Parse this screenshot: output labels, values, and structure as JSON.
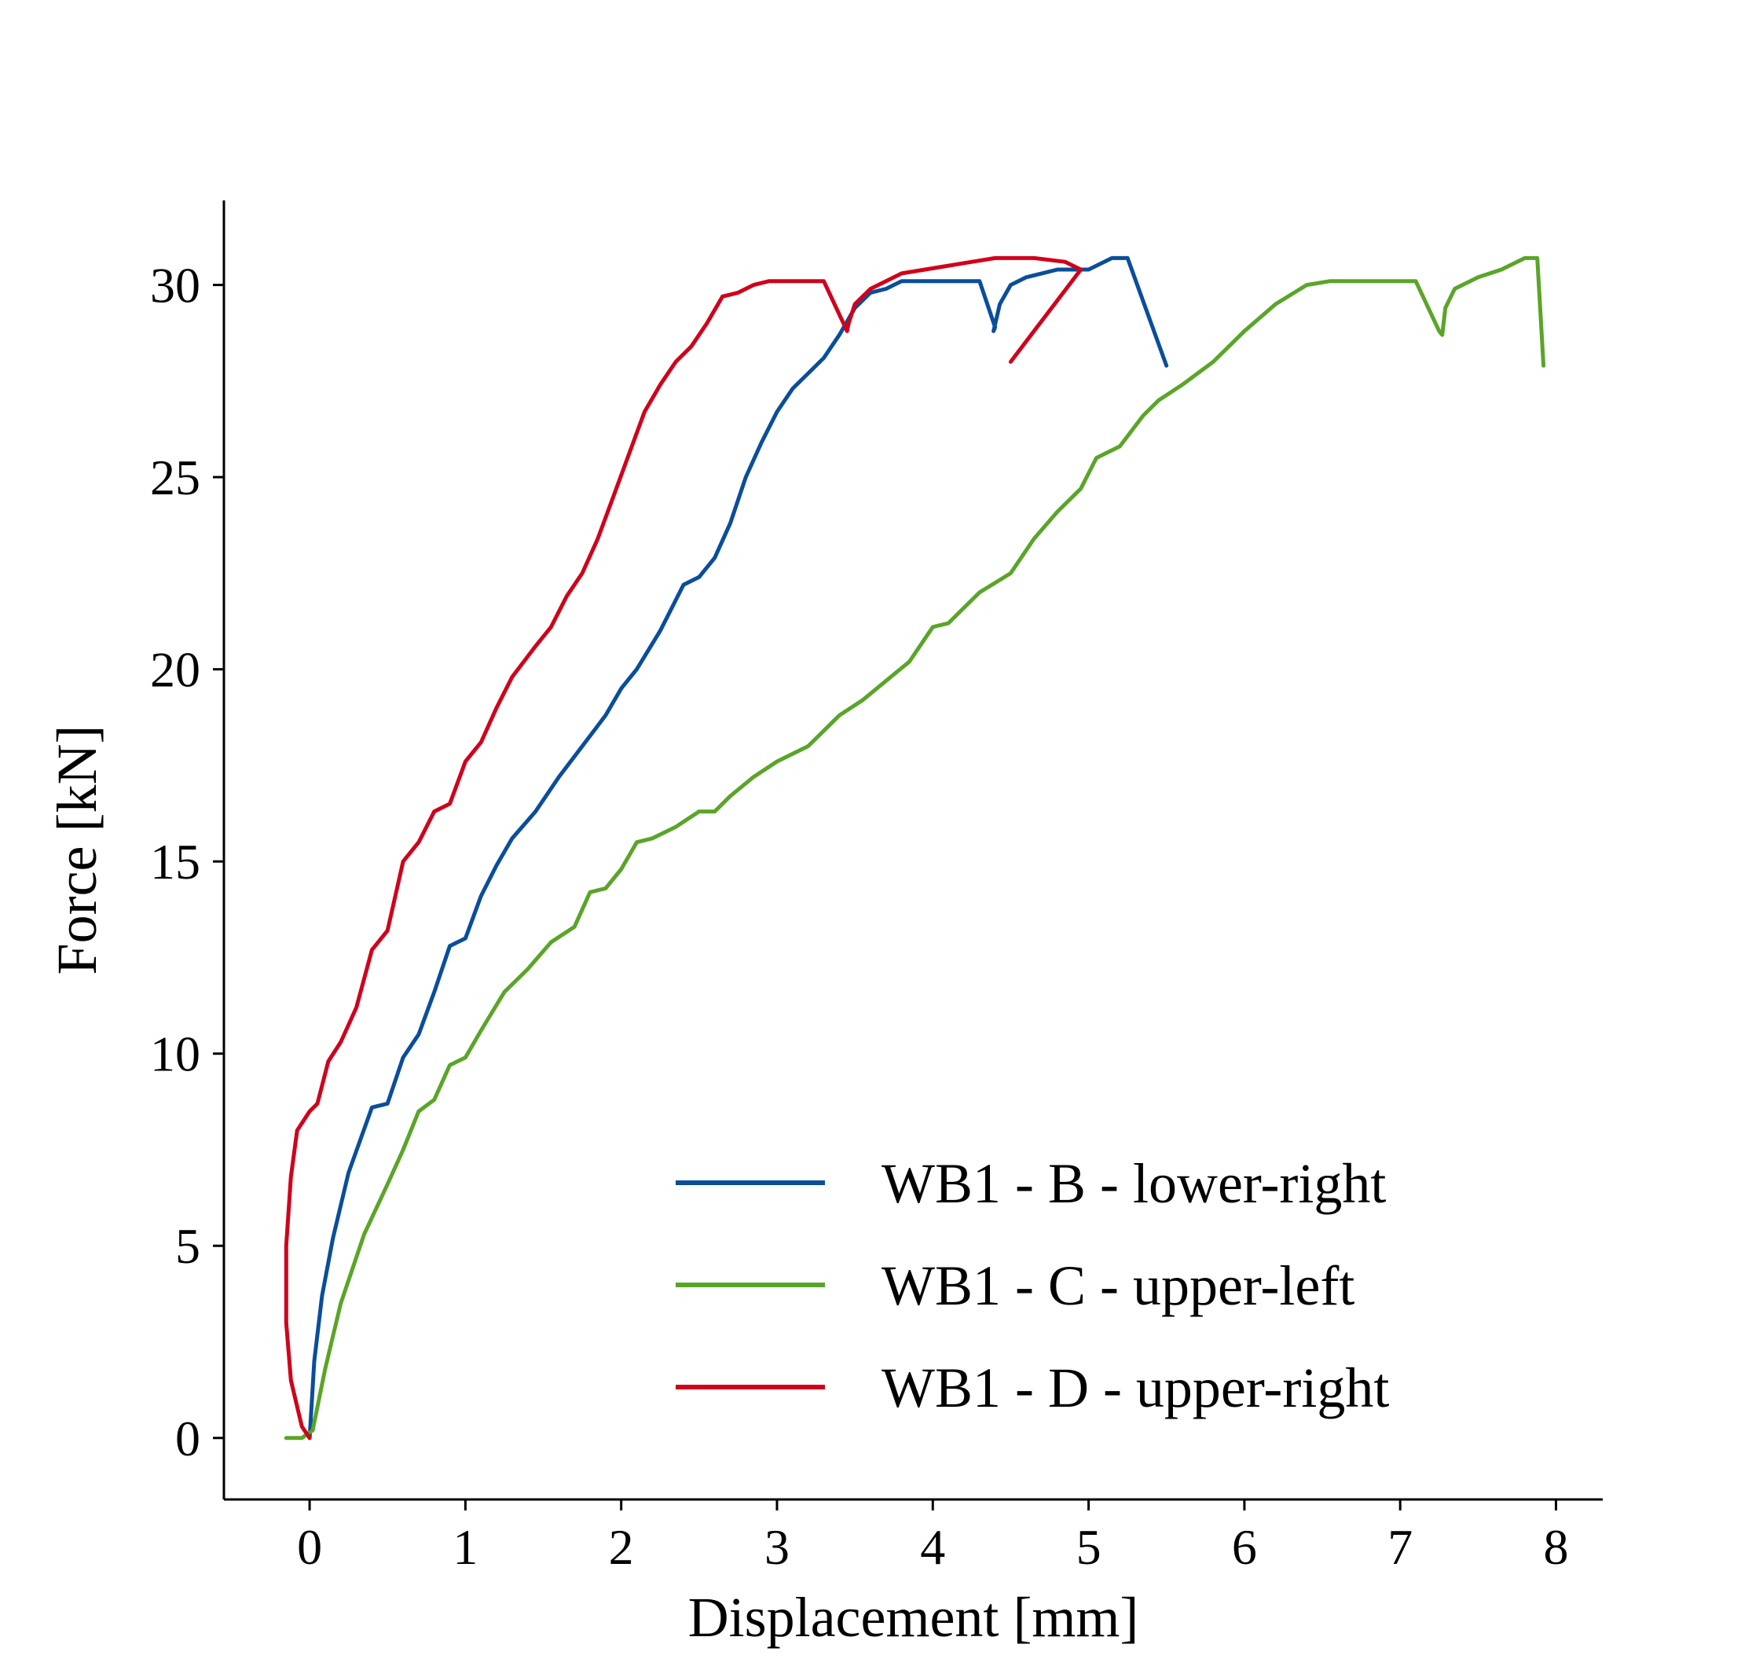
{
  "chart_data": {
    "type": "line",
    "title": "",
    "xlabel": "Displacement [mm]",
    "ylabel": "Force [kN]",
    "xlim": [
      -0.55,
      8.3
    ],
    "ylim": [
      -1.6,
      32.2
    ],
    "xticks": [
      0,
      1,
      2,
      3,
      4,
      5,
      6,
      7,
      8
    ],
    "xtick_labels": [
      "0",
      "1",
      "2",
      "3",
      "4",
      "5",
      "6",
      "7",
      "8"
    ],
    "yticks": [
      0,
      5,
      10,
      15,
      20,
      25,
      30
    ],
    "ytick_labels": [
      "0",
      "5",
      "10",
      "15",
      "20",
      "25",
      "30"
    ],
    "grid": false,
    "legend": "lower-right",
    "colors": {
      "axis": "#000000"
    },
    "series": [
      {
        "name": "WB1 - B - lower-right",
        "color": "#0a4e9b",
        "x": [
          0,
          0.03,
          0.08,
          0.15,
          0.25,
          0.4,
          0.5,
          0.6,
          0.7,
          0.8,
          0.9,
          1.0,
          1.1,
          1.2,
          1.3,
          1.45,
          1.6,
          1.75,
          1.9,
          2.0,
          2.1,
          2.25,
          2.4,
          2.5,
          2.6,
          2.7,
          2.8,
          2.9,
          3.0,
          3.1,
          3.2,
          3.3,
          3.4,
          3.5,
          3.6,
          3.7,
          3.8,
          3.9,
          4.0,
          4.1,
          4.2,
          4.3,
          4.4,
          4.39,
          4.43,
          4.5,
          4.6,
          4.7,
          4.8,
          4.9,
          5.0,
          5.1,
          5.15,
          5.25,
          5.5
        ],
        "y": [
          0,
          2,
          3.7,
          5.2,
          6.9,
          8.6,
          8.7,
          9.9,
          10.5,
          11.6,
          12.8,
          13.0,
          14.1,
          14.9,
          15.6,
          16.3,
          17.2,
          18.0,
          18.8,
          19.5,
          20.0,
          21.0,
          22.2,
          22.4,
          22.9,
          23.8,
          25.0,
          25.9,
          26.7,
          27.3,
          27.7,
          28.1,
          28.7,
          29.4,
          29.8,
          29.9,
          30.1,
          30.1,
          30.1,
          30.1,
          30.1,
          30.1,
          28.9,
          28.8,
          29.5,
          30.0,
          30.2,
          30.3,
          30.4,
          30.4,
          30.4,
          30.6,
          30.7,
          30.7,
          27.9
        ]
      },
      {
        "name": "WB1 - C - upper-left",
        "color": "#5aa528",
        "x": [
          -0.15,
          -0.05,
          0.02,
          0.1,
          0.2,
          0.35,
          0.5,
          0.6,
          0.7,
          0.8,
          0.9,
          1.0,
          1.1,
          1.25,
          1.4,
          1.55,
          1.7,
          1.8,
          1.9,
          2.0,
          2.1,
          2.2,
          2.35,
          2.5,
          2.6,
          2.7,
          2.85,
          3.0,
          3.2,
          3.4,
          3.55,
          3.7,
          3.85,
          4.0,
          4.1,
          4.3,
          4.5,
          4.65,
          4.8,
          4.95,
          5.05,
          5.2,
          5.35,
          5.45,
          5.6,
          5.8,
          6.0,
          6.2,
          6.4,
          6.55,
          6.7,
          6.85,
          6.95,
          7.1,
          7.25,
          7.27,
          7.29,
          7.35,
          7.5,
          7.65,
          7.8,
          7.88,
          7.92
        ],
        "y": [
          0,
          0,
          0.2,
          1.8,
          3.5,
          5.3,
          6.6,
          7.5,
          8.5,
          8.8,
          9.7,
          9.9,
          10.6,
          11.6,
          12.2,
          12.9,
          13.3,
          14.2,
          14.3,
          14.8,
          15.5,
          15.6,
          15.9,
          16.3,
          16.3,
          16.7,
          17.2,
          17.6,
          18.0,
          18.8,
          19.2,
          19.7,
          20.2,
          21.1,
          21.2,
          22.0,
          22.5,
          23.4,
          24.1,
          24.7,
          25.5,
          25.8,
          26.6,
          27.0,
          27.4,
          28.0,
          28.8,
          29.5,
          30.0,
          30.1,
          30.1,
          30.1,
          30.1,
          30.1,
          28.8,
          28.7,
          29.4,
          29.9,
          30.2,
          30.4,
          30.7,
          30.7,
          27.9
        ]
      },
      {
        "name": "WB1 - D - upper-right",
        "color": "#d0021b",
        "x": [
          0,
          -0.05,
          -0.12,
          -0.15,
          -0.15,
          -0.12,
          -0.08,
          0,
          0.05,
          0.12,
          0.2,
          0.3,
          0.4,
          0.5,
          0.6,
          0.7,
          0.8,
          0.9,
          1.0,
          1.1,
          1.2,
          1.3,
          1.45,
          1.55,
          1.65,
          1.75,
          1.85,
          1.95,
          2.05,
          2.15,
          2.25,
          2.35,
          2.45,
          2.55,
          2.65,
          2.75,
          2.85,
          2.95,
          3.1,
          3.3,
          3.45,
          3.46,
          3.5,
          3.6,
          3.7,
          3.8,
          3.95,
          4.1,
          4.25,
          4.4,
          4.5,
          4.65,
          4.85,
          4.95,
          4.5
        ],
        "y": [
          0,
          0.3,
          1.5,
          3.0,
          5.0,
          6.8,
          8.0,
          8.5,
          8.7,
          9.8,
          10.3,
          11.2,
          12.7,
          13.2,
          15.0,
          15.5,
          16.3,
          16.5,
          17.6,
          18.1,
          19.0,
          19.8,
          20.6,
          21.1,
          21.9,
          22.5,
          23.4,
          24.5,
          25.6,
          26.7,
          27.4,
          28.0,
          28.4,
          29.0,
          29.7,
          29.8,
          30.0,
          30.1,
          30.1,
          30.1,
          28.8,
          29.0,
          29.5,
          29.9,
          30.1,
          30.3,
          30.4,
          30.5,
          30.6,
          30.7,
          30.7,
          30.7,
          30.6,
          30.4,
          28.0
        ]
      }
    ]
  }
}
